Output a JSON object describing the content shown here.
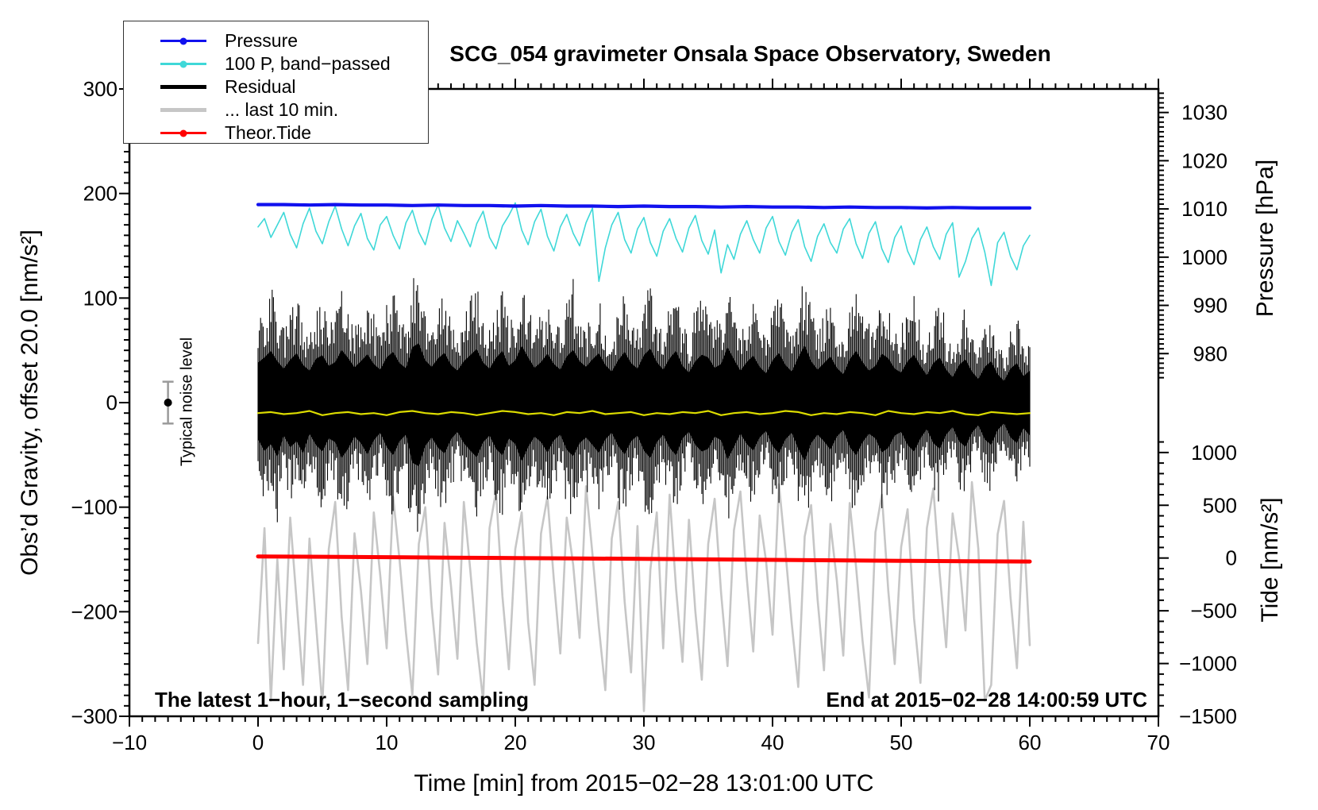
{
  "title": "SCG_054 gravimeter Onsala Space Observatory, Sweden",
  "annotations": {
    "sampling_note": "The latest 1−hour, 1−second sampling",
    "end_time_note": "End at 2015−02−28 14:00:59 UTC",
    "noise_label": "Typical noise level"
  },
  "colors": {
    "pressure_blue": "#1111EE",
    "bandpassed_cyan": "#3FD8D8",
    "residual_black": "#000000",
    "last10_gray": "#C6C6C6",
    "tide_red": "#FF0000",
    "smooth_yellow": "#DCDC00",
    "errorbar_gray": "#9A9A9A"
  },
  "legend": {
    "items": [
      {
        "label": "Pressure",
        "color_key": "pressure_blue",
        "thickness": 2.5,
        "dot": true
      },
      {
        "label": "100 P, band−passed",
        "color_key": "bandpassed_cyan",
        "thickness": 2.5,
        "dot": true
      },
      {
        "label": "Residual",
        "color_key": "residual_black",
        "thickness": 4.5,
        "dot": false
      },
      {
        "label": "... last 10 min.",
        "color_key": "last10_gray",
        "thickness": 4.5,
        "dot": false
      },
      {
        "label": "Theor.Tide",
        "color_key": "tide_red",
        "thickness": 2.5,
        "dot": true
      }
    ]
  },
  "chart_data": {
    "type": "line",
    "title": "SCG_054 gravimeter Onsala Space Observatory, Sweden",
    "grid": false,
    "legend_position": "top-left",
    "x_axis": {
      "label": "Time [min] from 2015−02−28 13:01:00 UTC",
      "min": -10,
      "max": 70,
      "minor_step": 1,
      "major_ticks": [
        -10,
        0,
        10,
        20,
        30,
        40,
        50,
        60,
        70
      ],
      "major_labels": [
        "−10",
        "0",
        "10",
        "20",
        "30",
        "40",
        "50",
        "60",
        "70"
      ]
    },
    "y_left_axis": {
      "label": "Obs’d Gravity, offset 20.0 [nm/s²]",
      "min": -300,
      "max": 300,
      "minor_step": 10,
      "major_ticks": [
        300,
        200,
        100,
        0,
        -100,
        -200,
        -300
      ],
      "major_labels": [
        "300",
        "200",
        "100",
        "0",
        "−100",
        "−200",
        "−300"
      ]
    },
    "y_right_top_axis": {
      "label": "Pressure [hPa]",
      "minor_step": 1,
      "minor_range": [
        975,
        1035
      ],
      "major_ticks": [
        1030,
        1020,
        1010,
        1000,
        990,
        980
      ],
      "major_labels": [
        "1030",
        "1020",
        "1010",
        "1000",
        "990",
        "980"
      ]
    },
    "y_right_bottom_axis": {
      "label": "Tide [nm/s²]",
      "minor_step": 100,
      "minor_range": [
        -1500,
        1100
      ],
      "major_ticks": [
        1000,
        500,
        0,
        -500,
        -1000,
        -1500
      ],
      "major_labels": [
        "1000",
        "500",
        "0",
        "−500",
        "−1000",
        "−1500"
      ]
    },
    "noise_marker": {
      "x": -7,
      "value": 0,
      "error": 20,
      "label": "Typical noise level"
    },
    "series": [
      {
        "name": "Pressure",
        "axis": "pressure",
        "unit": "hPa",
        "color_key": "pressure_blue",
        "width": 4.2,
        "x_start": 0,
        "x_step": 2,
        "values": [
          1010.9,
          1010.9,
          1010.8,
          1010.9,
          1010.8,
          1010.8,
          1010.7,
          1010.8,
          1010.7,
          1010.7,
          1010.6,
          1010.7,
          1010.6,
          1010.6,
          1010.5,
          1010.6,
          1010.5,
          1010.5,
          1010.4,
          1010.5,
          1010.4,
          1010.4,
          1010.3,
          1010.4,
          1010.3,
          1010.3,
          1010.2,
          1010.3,
          1010.2,
          1010.2,
          1010.2
        ]
      },
      {
        "name": "100 P, band−passed",
        "axis": "gravity",
        "unit": "nm/s²",
        "color_key": "bandpassed_cyan",
        "width": 1.6,
        "x_start": 0,
        "x_step": 0.5,
        "values": [
          168,
          176,
          158,
          170,
          182,
          161,
          148,
          171,
          186,
          164,
          152,
          173,
          188,
          166,
          150,
          169,
          181,
          157,
          146,
          170,
          178,
          160,
          147,
          172,
          184,
          163,
          151,
          175,
          189,
          167,
          154,
          174,
          162,
          149,
          171,
          183,
          158,
          147,
          169,
          179,
          191,
          165,
          151,
          173,
          185,
          159,
          145,
          168,
          180,
          162,
          150,
          172,
          186,
          116,
          148,
          170,
          182,
          156,
          143,
          166,
          177,
          153,
          140,
          164,
          176,
          157,
          144,
          167,
          179,
          155,
          142,
          165,
          124,
          151,
          137,
          161,
          174,
          156,
          143,
          167,
          178,
          154,
          141,
          163,
          175,
          149,
          135,
          159,
          171,
          153,
          143,
          166,
          176,
          152,
          138,
          162,
          173,
          147,
          134,
          158,
          169,
          145,
          132,
          156,
          168,
          149,
          137,
          161,
          172,
          120,
          135,
          157,
          167,
          144,
          112,
          153,
          163,
          140,
          127,
          150,
          160
        ]
      },
      {
        "name": "Residual",
        "axis": "gravity",
        "unit": "nm/s²",
        "color_key": "residual_black",
        "type": "noise-band",
        "x_start": 0,
        "x_step": 0.5,
        "hi": [
          85,
          96,
          110,
          88,
          72,
          91,
          105,
          80,
          68,
          93,
          101,
          78,
          86,
          112,
          95,
          75,
          88,
          103,
          82,
          70,
          96,
          108,
          84,
          73,
          118,
          126,
          90,
          76,
          94,
          106,
          80,
          68,
          88,
          101,
          114,
          85,
          72,
          95,
          110,
          78,
          90,
          121,
          96,
          74,
          86,
          104,
          82,
          70,
          98,
          112,
          88,
          76,
          92,
          105,
          80,
          66,
          90,
          108,
          84,
          72,
          101,
          115,
          86,
          70,
          94,
          110,
          78,
          64,
          88,
          102,
          96,
          74,
          82,
          118,
          92,
          68,
          86,
          100,
          76,
          62,
          90,
          106,
          80,
          66,
          96,
          122,
          88,
          70,
          84,
          98,
          74,
          60,
          92,
          110,
          86,
          68,
          78,
          104,
          94,
          72,
          64,
          88,
          102,
          78,
          58,
          84,
          96,
          70,
          54,
          80,
          92,
          66,
          50,
          76,
          88,
          60,
          46,
          72,
          84,
          56,
          68
        ],
        "lo": [
          -78,
          -103,
          -88,
          -115,
          -70,
          -95,
          -82,
          -108,
          -66,
          -90,
          -104,
          -76,
          -84,
          -118,
          -98,
          -72,
          -86,
          -110,
          -80,
          -64,
          -94,
          -112,
          -82,
          -68,
          -128,
          -135,
          -92,
          -74,
          -96,
          -108,
          -78,
          -62,
          -86,
          -102,
          -116,
          -84,
          -70,
          -98,
          -112,
          -76,
          -88,
          -125,
          -94,
          -72,
          -84,
          -106,
          -80,
          -68,
          -100,
          -114,
          -86,
          -74,
          -90,
          -107,
          -78,
          -64,
          -92,
          -110,
          -82,
          -70,
          -102,
          -118,
          -84,
          -68,
          -96,
          -112,
          -76,
          -62,
          -90,
          -104,
          -98,
          -72,
          -80,
          -121,
          -94,
          -66,
          -88,
          -102,
          -74,
          -60,
          -92,
          -108,
          -78,
          -64,
          -98,
          -124,
          -86,
          -68,
          -82,
          -100,
          -72,
          -58,
          -94,
          -112,
          -84,
          -66,
          -76,
          -106,
          -96,
          -70,
          -62,
          -90,
          -104,
          -76,
          -56,
          -86,
          -98,
          -68,
          -52,
          -82,
          -94,
          -64,
          -48,
          -78,
          -90,
          -58,
          -44,
          -74,
          -86,
          -54,
          -70
        ]
      },
      {
        "name": "Residual smoothed",
        "axis": "gravity",
        "unit": "nm/s²",
        "color_key": "smooth_yellow",
        "width": 2.2,
        "x_start": 0,
        "x_step": 1,
        "values": [
          -10,
          -9,
          -11,
          -10,
          -8,
          -12,
          -10,
          -9,
          -11,
          -10,
          -12,
          -9,
          -8,
          -10,
          -11,
          -9,
          -10,
          -12,
          -10,
          -8,
          -9,
          -11,
          -10,
          -12,
          -9,
          -10,
          -8,
          -11,
          -10,
          -9,
          -12,
          -10,
          -11,
          -9,
          -10,
          -8,
          -12,
          -10,
          -9,
          -11,
          -10,
          -8,
          -9,
          -12,
          -10,
          -11,
          -9,
          -10,
          -12,
          -8,
          -10,
          -11,
          -9,
          -10,
          -8,
          -11,
          -12,
          -9,
          -10,
          -11,
          -10
        ]
      },
      {
        "name": "... last 10 min.",
        "axis": "gravity",
        "unit": "nm/s²",
        "color_key": "last10_gray",
        "width": 2.6,
        "x_start": 0,
        "x_step": 0.5,
        "values": [
          -230,
          -120,
          -285,
          -150,
          -255,
          -110,
          -190,
          -270,
          -130,
          -210,
          -290,
          -140,
          -95,
          -205,
          -275,
          -125,
          -180,
          -250,
          -105,
          -165,
          -235,
          -90,
          -150,
          -220,
          -280,
          -135,
          -100,
          -195,
          -260,
          -115,
          -175,
          -245,
          -95,
          -160,
          -230,
          -285,
          -120,
          -85,
          -185,
          -255,
          -140,
          -105,
          -210,
          -270,
          -125,
          -90,
          -170,
          -240,
          -110,
          -155,
          -225,
          -80,
          -145,
          -215,
          -275,
          -130,
          -95,
          -190,
          -258,
          -118,
          -295,
          -160,
          -105,
          -235,
          -88,
          -178,
          -248,
          -112,
          -200,
          -265,
          -135,
          -92,
          -182,
          -252,
          -122,
          -85,
          -168,
          -238,
          -108,
          -152,
          -222,
          -78,
          -142,
          -212,
          -272,
          -128,
          -98,
          -188,
          -256,
          -116,
          -170,
          -242,
          -96,
          -158,
          -228,
          -282,
          -124,
          -88,
          -180,
          -250,
          -138,
          -102,
          -206,
          -268,
          -120,
          -82,
          -164,
          -234,
          -106,
          -148,
          -218,
          -76,
          -140,
          -285,
          -270,
          -126,
          -94,
          -186,
          -254,
          -114,
          -232
        ]
      },
      {
        "name": "Theor.Tide",
        "axis": "tide",
        "unit": "nm/s²",
        "color_key": "tide_red",
        "width": 5,
        "x_start": 0,
        "x_step": 5,
        "values": [
          15,
          12,
          8,
          4,
          0,
          -4,
          -8,
          -13,
          -17,
          -22,
          -26,
          -30,
          -33
        ]
      }
    ]
  }
}
